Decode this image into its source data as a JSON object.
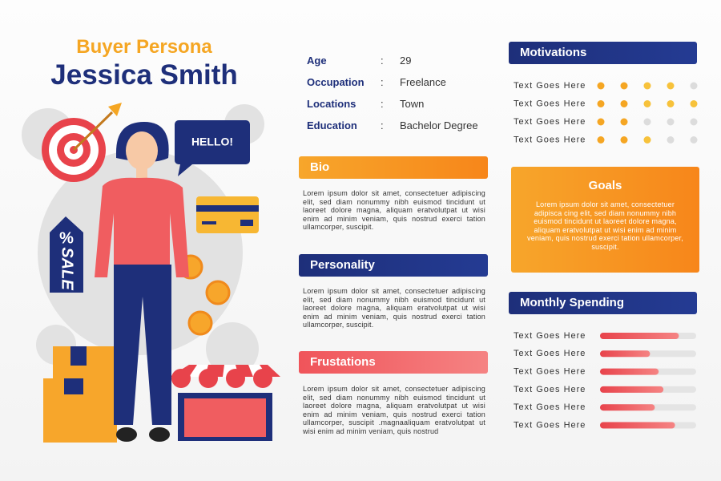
{
  "header": {
    "subtitle": "Buyer Persona",
    "title": "Jessica Smith"
  },
  "illustration": {
    "speech": "HELLO!",
    "tag_percent": "%",
    "tag_sale": "SALE"
  },
  "profile": {
    "separator": ":",
    "rows": [
      [
        "Age",
        "29"
      ],
      [
        "Occupation",
        "Freelance"
      ],
      [
        "Locations",
        "Town"
      ],
      [
        "Education",
        "Bachelor Degree"
      ]
    ]
  },
  "bio": {
    "title": "Bio",
    "text": "Lorem ipsum dolor sit amet, consectetuer adipiscing elit, sed diam nonummy nibh euismod tincidunt ut laoreet dolore magna, aliquam eratvolutpat ut wisi enim ad minim veniam, quis nostrud exerci tation ullamcorper, suscipit."
  },
  "personality": {
    "title": "Personality",
    "text": "Lorem ipsum dolor sit amet, consectetuer adipiscing elit, sed diam nonummy nibh euismod tincidunt ut laoreet dolore magna, aliquam eratvolutpat ut wisi enim ad minim veniam, quis nostrud exerci tation ullamcorper, suscipit."
  },
  "frustations": {
    "title": "Frustations",
    "text": "Lorem ipsum dolor sit amet, consectetuer adipiscing elit, sed diam nonummy nibh euismod tincidunt ut laoreet dolore magna, aliquam eratvolutpat ut wisi enim ad minim veniam, quis nostrud exerci tation ullamcorper, suscipit .magnaaliquam eratvolutpat ut wisi enim ad minim veniam, quis nostrud"
  },
  "motivations": {
    "title": "Motivations",
    "rows": [
      {
        "label": "Text Goes Here",
        "value": 4
      },
      {
        "label": "Text Goes Here",
        "value": 5
      },
      {
        "label": "Text Goes Here",
        "value": 2
      },
      {
        "label": "Text Goes Here",
        "value": 3
      }
    ]
  },
  "goals": {
    "title": "Goals",
    "text": "Lorem ipsum dolor sit amet, consectetuer adipisca cing elit, sed diam nonummy nibh euismod tincidunt ut laoreet dolore magna, aliquam eratvolutpat ut wisi enim ad minim veniam, quis nostrud exerci tation ullamcorper, suscipit."
  },
  "monthly_spending": {
    "title": "Monthly Spending",
    "rows": [
      {
        "label": "Text Goes Here",
        "value": 0.82
      },
      {
        "label": "Text Goes Here",
        "value": 0.52
      },
      {
        "label": "Text Goes Here",
        "value": 0.61
      },
      {
        "label": "Text Goes Here",
        "value": 0.66
      },
      {
        "label": "Text Goes Here",
        "value": 0.57
      },
      {
        "label": "Text Goes Here",
        "value": 0.78
      }
    ]
  }
}
